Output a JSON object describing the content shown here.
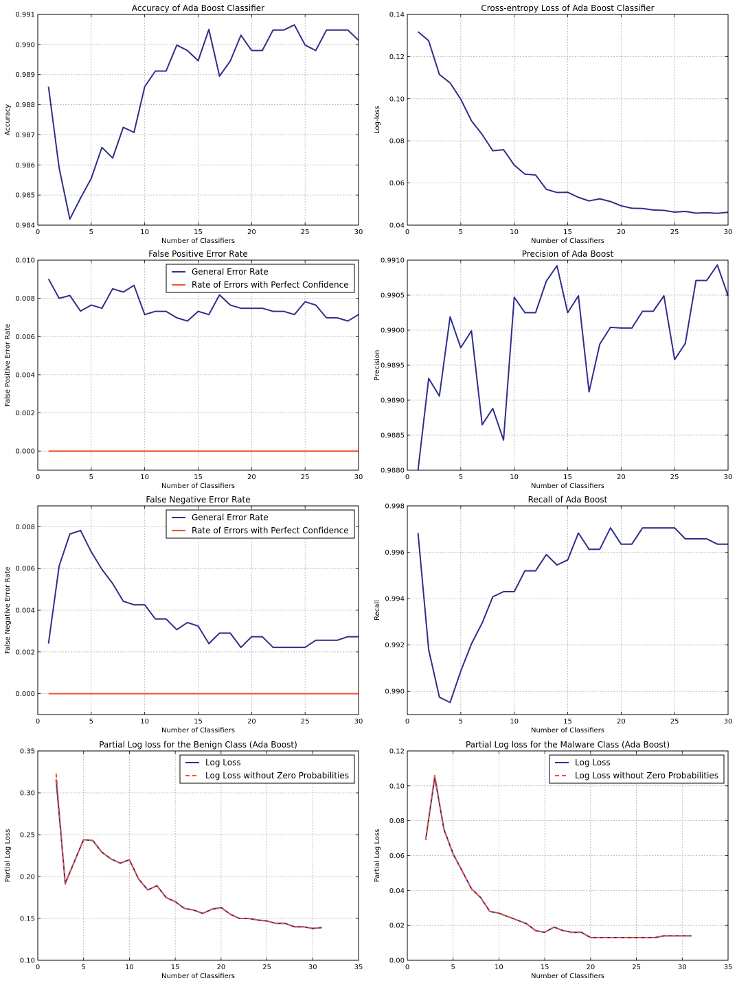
{
  "figure": {
    "background": "#ffffff"
  },
  "colors": {
    "blue": "#2e2e8c",
    "red": "#f0512b",
    "grid": "#b0b0b0"
  },
  "chart_data": [
    {
      "type": "line",
      "title": "Accuracy of Ada Boost Classifier",
      "xlabel": "Number of Classifiers",
      "ylabel": "Accuracy",
      "xlim": [
        0,
        30
      ],
      "ylim": [
        0.984,
        0.991
      ],
      "xticks": [
        "0",
        "5",
        "10",
        "15",
        "20",
        "25",
        "30"
      ],
      "yticks": [
        "0.984",
        "0.985",
        "0.986",
        "0.987",
        "0.988",
        "0.989",
        "0.990",
        "0.991"
      ],
      "grid": true,
      "legend": null,
      "series": [
        {
          "color": "#2e2e8c",
          "dash": false,
          "x": [
            1,
            2,
            3,
            4,
            5,
            6,
            7,
            8,
            9,
            10,
            11,
            12,
            13,
            14,
            15,
            16,
            17,
            18,
            19,
            20,
            21,
            22,
            23,
            24,
            25,
            26,
            27,
            28,
            29,
            30
          ],
          "y": [
            0.9886,
            0.9859,
            0.9842,
            0.9849,
            0.98555,
            0.98658,
            0.98623,
            0.98725,
            0.98708,
            0.9886,
            0.98912,
            0.98912,
            0.98998,
            0.9898,
            0.98946,
            0.9905,
            0.98895,
            0.98945,
            0.99031,
            0.9898,
            0.9898,
            0.99048,
            0.99048,
            0.99065,
            0.98998,
            0.9898,
            0.99048,
            0.99048,
            0.99048,
            0.99014
          ]
        }
      ]
    },
    {
      "type": "line",
      "title": "Cross-entropy Loss of Ada Boost Classifier",
      "xlabel": "Number of Classifiers",
      "ylabel": "Log-loss",
      "xlim": [
        0,
        30
      ],
      "ylim": [
        0.04,
        0.14
      ],
      "xticks": [
        "0",
        "5",
        "10",
        "15",
        "20",
        "25",
        "30"
      ],
      "yticks": [
        "0.04",
        "0.06",
        "0.08",
        "0.10",
        "0.12",
        "0.14"
      ],
      "grid": true,
      "legend": null,
      "series": [
        {
          "color": "#2e2e8c",
          "dash": false,
          "x": [
            1,
            2,
            3,
            4,
            5,
            6,
            7,
            8,
            9,
            10,
            11,
            12,
            13,
            14,
            15,
            16,
            17,
            18,
            19,
            20,
            21,
            22,
            23,
            24,
            25,
            26,
            27,
            28,
            29,
            30
          ],
          "y": [
            0.1318,
            0.1275,
            0.1115,
            0.1075,
            0.0998,
            0.0895,
            0.083,
            0.0753,
            0.0758,
            0.0685,
            0.0642,
            0.0638,
            0.057,
            0.0555,
            0.0556,
            0.0532,
            0.0515,
            0.0525,
            0.0512,
            0.0492,
            0.048,
            0.0479,
            0.0472,
            0.047,
            0.0462,
            0.0465,
            0.0457,
            0.0459,
            0.0456,
            0.0461
          ]
        }
      ]
    },
    {
      "type": "line",
      "title": "False Positive Error Rate",
      "xlabel": "Number of Classifiers",
      "ylabel": "False Positive Error Rate",
      "xlim": [
        0,
        30
      ],
      "ylim": [
        -0.001,
        0.01
      ],
      "xticks": [
        "0",
        "5",
        "10",
        "15",
        "20",
        "25",
        "30"
      ],
      "yticks": [
        "0.000",
        "0.002",
        "0.004",
        "0.006",
        "0.008",
        "0.010"
      ],
      "grid": true,
      "legend": "upper right",
      "series": [
        {
          "name": "General Error Rate",
          "color": "#2e2e8c",
          "dash": false,
          "x": [
            1,
            2,
            3,
            4,
            5,
            6,
            7,
            8,
            9,
            10,
            11,
            12,
            13,
            14,
            15,
            16,
            17,
            18,
            19,
            20,
            21,
            22,
            23,
            24,
            25,
            26,
            27,
            28,
            29,
            30
          ],
          "y": [
            0.00902,
            0.008,
            0.00815,
            0.00733,
            0.00765,
            0.00748,
            0.0085,
            0.00833,
            0.00868,
            0.00715,
            0.00732,
            0.00732,
            0.00698,
            0.00681,
            0.00732,
            0.00715,
            0.00818,
            0.00765,
            0.00748,
            0.00748,
            0.00748,
            0.00732,
            0.00732,
            0.00715,
            0.00782,
            0.00765,
            0.00698,
            0.00698,
            0.00681,
            0.00715
          ]
        },
        {
          "name": "Rate of Errors with Perfect Confidence",
          "color": "#f0512b",
          "dash": false,
          "x": [
            1,
            30
          ],
          "y": [
            0,
            0
          ]
        }
      ]
    },
    {
      "type": "line",
      "title": "Precision of Ada Boost",
      "xlabel": "Number of Classifiers",
      "ylabel": "Precision",
      "xlim": [
        0,
        30
      ],
      "ylim": [
        0.988,
        0.991
      ],
      "xticks": [
        "0",
        "5",
        "10",
        "15",
        "20",
        "25",
        "30"
      ],
      "yticks": [
        "0.9880",
        "0.9885",
        "0.9890",
        "0.9895",
        "0.9900",
        "0.9905",
        "0.9910"
      ],
      "grid": true,
      "legend": null,
      "series": [
        {
          "color": "#2e2e8c",
          "dash": false,
          "x": [
            1,
            2,
            3,
            4,
            5,
            6,
            7,
            8,
            9,
            10,
            11,
            12,
            13,
            14,
            15,
            16,
            17,
            18,
            19,
            20,
            21,
            22,
            23,
            24,
            25,
            26,
            27,
            28,
            29,
            30
          ],
          "y": [
            0.988,
            0.98931,
            0.98906,
            0.99019,
            0.98975,
            0.98999,
            0.98865,
            0.98888,
            0.98843,
            0.99047,
            0.99025,
            0.99025,
            0.9907,
            0.99092,
            0.99025,
            0.99049,
            0.98912,
            0.9898,
            0.99004,
            0.99003,
            0.99003,
            0.99027,
            0.99027,
            0.99049,
            0.98958,
            0.98981,
            0.99071,
            0.99071,
            0.99093,
            0.99049
          ]
        }
      ]
    },
    {
      "type": "line",
      "title": "False Negative Error Rate",
      "xlabel": "Number of Classifiers",
      "ylabel": "False Negative Error Rate",
      "xlim": [
        0,
        30
      ],
      "ylim": [
        -0.001,
        0.009
      ],
      "xticks": [
        "0",
        "5",
        "10",
        "15",
        "20",
        "25",
        "30"
      ],
      "yticks": [
        "0.000",
        "0.002",
        "0.004",
        "0.006",
        "0.008"
      ],
      "grid": true,
      "legend": "upper right",
      "series": [
        {
          "name": "General Error Rate",
          "color": "#2e2e8c",
          "dash": false,
          "x": [
            1,
            2,
            3,
            4,
            5,
            6,
            7,
            8,
            9,
            10,
            11,
            12,
            13,
            14,
            15,
            16,
            17,
            18,
            19,
            20,
            21,
            22,
            23,
            24,
            25,
            26,
            27,
            28,
            29,
            30
          ],
          "y": [
            0.0024,
            0.00612,
            0.00765,
            0.00782,
            0.0068,
            0.00596,
            0.00528,
            0.00443,
            0.00426,
            0.00426,
            0.00358,
            0.00358,
            0.00307,
            0.00341,
            0.00324,
            0.0024,
            0.0029,
            0.0029,
            0.00222,
            0.00273,
            0.00273,
            0.00222,
            0.00222,
            0.00222,
            0.00222,
            0.00256,
            0.00256,
            0.00256,
            0.00273,
            0.00273
          ]
        },
        {
          "name": "Rate of Errors with Perfect Confidence",
          "color": "#f0512b",
          "dash": false,
          "x": [
            1,
            30
          ],
          "y": [
            0,
            0
          ]
        }
      ]
    },
    {
      "type": "line",
      "title": "Recall of Ada Boost",
      "xlabel": "Number of Classifiers",
      "ylabel": "Recall",
      "xlim": [
        0,
        30
      ],
      "ylim": [
        0.989,
        0.998
      ],
      "xticks": [
        "0",
        "5",
        "10",
        "15",
        "20",
        "25",
        "30"
      ],
      "yticks": [
        "0.990",
        "0.992",
        "0.994",
        "0.996",
        "0.998"
      ],
      "grid": true,
      "legend": null,
      "series": [
        {
          "color": "#2e2e8c",
          "dash": false,
          "x": [
            1,
            2,
            3,
            4,
            5,
            6,
            7,
            8,
            9,
            10,
            11,
            12,
            13,
            14,
            15,
            16,
            17,
            18,
            19,
            20,
            21,
            22,
            23,
            24,
            25,
            26,
            27,
            28,
            29,
            30
          ],
          "y": [
            0.99683,
            0.9918,
            0.98975,
            0.98952,
            0.99087,
            0.99205,
            0.99295,
            0.99408,
            0.9943,
            0.9943,
            0.9952,
            0.9952,
            0.9959,
            0.99545,
            0.99567,
            0.99683,
            0.99613,
            0.99613,
            0.99705,
            0.99635,
            0.99635,
            0.99705,
            0.99705,
            0.99705,
            0.99705,
            0.99658,
            0.99658,
            0.99658,
            0.99635,
            0.99635
          ]
        }
      ]
    },
    {
      "type": "line",
      "title": "Partial Log loss for the Benign Class (Ada Boost)",
      "xlabel": "Number of Classifiers",
      "ylabel": "Partial Log Loss",
      "xlim": [
        0,
        35
      ],
      "ylim": [
        0.1,
        0.35
      ],
      "xticks": [
        "0",
        "5",
        "10",
        "15",
        "20",
        "25",
        "30",
        "35"
      ],
      "yticks": [
        "0.10",
        "0.15",
        "0.20",
        "0.25",
        "0.30",
        "0.35"
      ],
      "grid": true,
      "legend": "upper right",
      "series": [
        {
          "name": "Log Loss",
          "color": "#2e2e8c",
          "dash": false,
          "x": [
            2,
            3,
            4,
            5,
            6,
            7,
            8,
            9,
            10,
            11,
            12,
            13,
            14,
            15,
            16,
            17,
            18,
            19,
            20,
            21,
            22,
            23,
            24,
            25,
            26,
            27,
            28,
            29,
            30,
            31
          ],
          "y": [
            0.316,
            0.192,
            0.218,
            0.244,
            0.243,
            0.229,
            0.221,
            0.216,
            0.22,
            0.197,
            0.184,
            0.189,
            0.175,
            0.17,
            0.162,
            0.16,
            0.156,
            0.161,
            0.163,
            0.155,
            0.15,
            0.15,
            0.148,
            0.147,
            0.144,
            0.144,
            0.14,
            0.14,
            0.138,
            0.139
          ]
        },
        {
          "name": "Log Loss without Zero Probabilities",
          "color": "#f0512b",
          "dash": true,
          "x": [
            2,
            3,
            4,
            5,
            6,
            7,
            8,
            9,
            10,
            11,
            12,
            13,
            14,
            15,
            16,
            17,
            18,
            19,
            20,
            21,
            22,
            23,
            24,
            25,
            26,
            27,
            28,
            29,
            30,
            31
          ],
          "y": [
            0.323,
            0.191,
            0.218,
            0.244,
            0.243,
            0.229,
            0.221,
            0.216,
            0.22,
            0.197,
            0.184,
            0.189,
            0.175,
            0.17,
            0.162,
            0.16,
            0.156,
            0.161,
            0.163,
            0.155,
            0.15,
            0.15,
            0.148,
            0.147,
            0.144,
            0.144,
            0.14,
            0.14,
            0.138,
            0.139
          ]
        }
      ]
    },
    {
      "type": "line",
      "title": "Partial Log loss for the Malware Class (Ada Boost)",
      "xlabel": "Number of Classifiers",
      "ylabel": "Partial Log Loss",
      "xlim": [
        0,
        35
      ],
      "ylim": [
        0.0,
        0.12
      ],
      "xticks": [
        "0",
        "5",
        "10",
        "15",
        "20",
        "25",
        "30",
        "35"
      ],
      "yticks": [
        "0.00",
        "0.02",
        "0.04",
        "0.06",
        "0.08",
        "0.10",
        "0.12"
      ],
      "grid": true,
      "legend": "upper right",
      "series": [
        {
          "name": "Log Loss",
          "color": "#2e2e8c",
          "dash": false,
          "x": [
            2,
            3,
            4,
            5,
            6,
            7,
            8,
            9,
            10,
            11,
            12,
            13,
            14,
            15,
            16,
            17,
            18,
            19,
            20,
            21,
            22,
            23,
            24,
            25,
            26,
            27,
            28,
            29,
            30,
            31
          ],
          "y": [
            0.069,
            0.105,
            0.075,
            0.061,
            0.051,
            0.041,
            0.036,
            0.028,
            0.027,
            0.025,
            0.023,
            0.021,
            0.017,
            0.016,
            0.019,
            0.017,
            0.016,
            0.016,
            0.013,
            0.013,
            0.013,
            0.013,
            0.013,
            0.013,
            0.013,
            0.013,
            0.014,
            0.014,
            0.014,
            0.014
          ]
        },
        {
          "name": "Log Loss without Zero Probabilities",
          "color": "#f0512b",
          "dash": true,
          "x": [
            2,
            3,
            4,
            5,
            6,
            7,
            8,
            9,
            10,
            11,
            12,
            13,
            14,
            15,
            16,
            17,
            18,
            19,
            20,
            21,
            22,
            23,
            24,
            25,
            26,
            27,
            28,
            29,
            30,
            31
          ],
          "y": [
            0.069,
            0.106,
            0.075,
            0.061,
            0.051,
            0.041,
            0.036,
            0.028,
            0.027,
            0.025,
            0.023,
            0.021,
            0.017,
            0.016,
            0.019,
            0.017,
            0.016,
            0.016,
            0.013,
            0.013,
            0.013,
            0.013,
            0.013,
            0.013,
            0.013,
            0.013,
            0.014,
            0.014,
            0.014,
            0.014
          ]
        }
      ]
    }
  ]
}
